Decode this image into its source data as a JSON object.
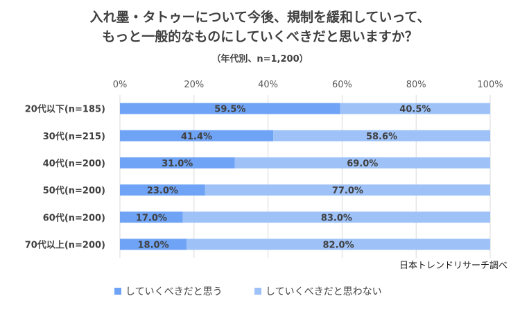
{
  "chart_data": {
    "type": "bar",
    "stacked": true,
    "orientation": "horizontal",
    "title_lines": [
      "入れ墨・タトゥーについて今後、規制を緩和していって、",
      "もっと一般的なものにしていくべきだと思いますか？"
    ],
    "subtitle": "（年代別、n=1,200）",
    "categories": [
      "20代以下(n=185)",
      "30代(n=215)",
      "40代(n=200)",
      "50代(n=200)",
      "60代(n=200)",
      "70代以上(n=200)"
    ],
    "series": [
      {
        "name": "していくべきだと思う",
        "values": [
          59.5,
          41.4,
          31.0,
          23.0,
          17.0,
          18.0
        ],
        "labels": [
          "59.5%",
          "41.4%",
          "31.0%",
          "23.0%",
          "17.0%",
          "18.0%"
        ],
        "color": "#6fa3f5"
      },
      {
        "name": "していくべきだと思わない",
        "values": [
          40.5,
          58.6,
          69.0,
          77.0,
          83.0,
          82.0
        ],
        "labels": [
          "40.5%",
          "58.6%",
          "69.0%",
          "77.0%",
          "83.0%",
          "82.0%"
        ],
        "color": "#9ec2f8"
      }
    ],
    "xlim": [
      0,
      100
    ],
    "ticks": [
      0,
      20,
      40,
      60,
      80,
      100
    ],
    "tick_labels": [
      "0%",
      "20%",
      "40%",
      "60%",
      "80%",
      "100%"
    ],
    "grid": true,
    "legend_position": "bottom",
    "source": "日本トレンドリサーチ調べ"
  }
}
